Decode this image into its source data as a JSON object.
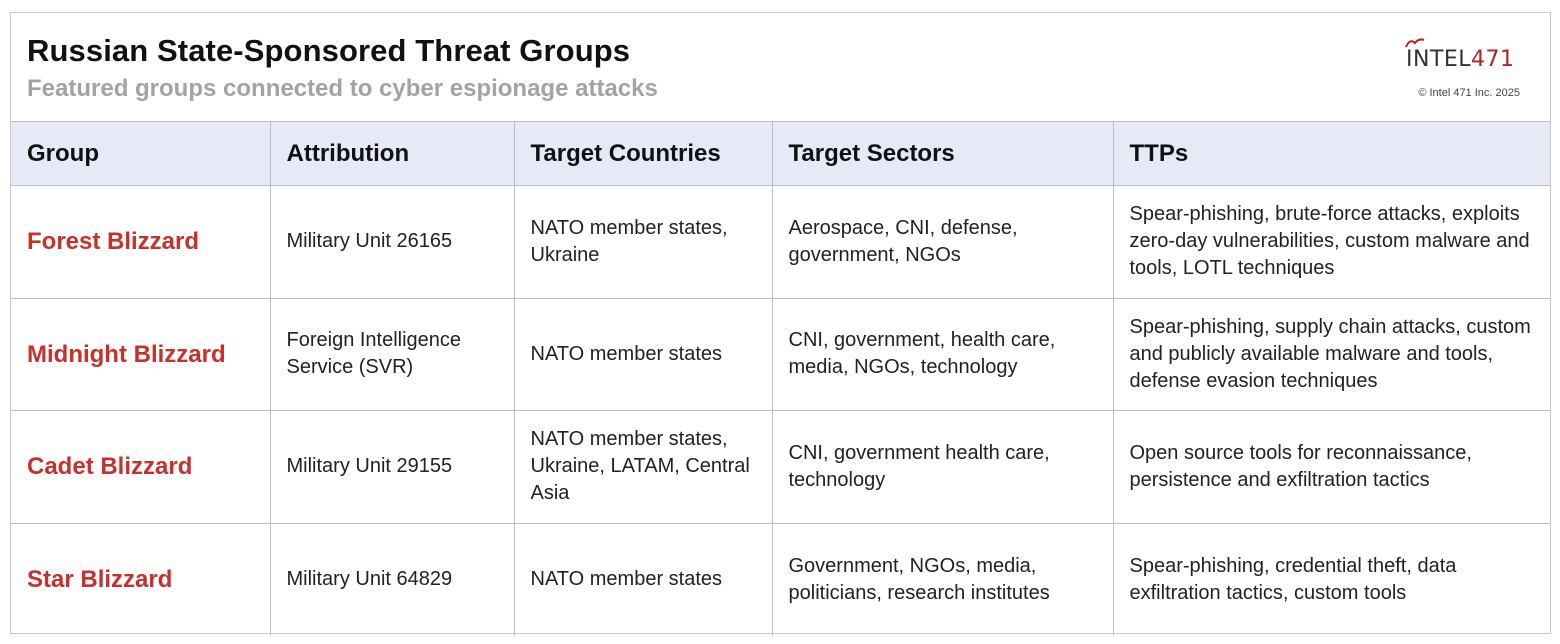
{
  "header": {
    "title": "Russian State-Sponsored Threat Groups",
    "subtitle": "Featured groups connected to cyber espionage attacks"
  },
  "logo": {
    "name_left": "INTEL",
    "name_right": "471",
    "copyright": "© Intel 471 Inc. 2025",
    "accent_color": "#b22222"
  },
  "table": {
    "headers": [
      "Group",
      "Attribution",
      "Target Countries",
      "Target Sectors",
      "TTPs"
    ],
    "rows": [
      {
        "group": "Forest Blizzard",
        "attribution": "Military Unit 26165",
        "countries": "NATO member states, Ukraine",
        "sectors": "Aerospace, CNI, defense, government, NGOs",
        "ttps": "Spear-phishing, brute-force attacks, exploits zero-day vulnerabilities, custom malware and tools, LOTL techniques"
      },
      {
        "group": "Midnight Blizzard",
        "attribution": "Foreign Intelligence Service (SVR)",
        "countries": "NATO member states",
        "sectors": "CNI, government, health care, media, NGOs, technology",
        "ttps": "Spear-phishing, supply chain attacks, custom and publicly available malware and tools, defense evasion techniques"
      },
      {
        "group": "Cadet Blizzard",
        "attribution": "Military Unit 29155",
        "countries": "NATO member states, Ukraine, LATAM, Central Asia",
        "sectors": "CNI, government health care, technology",
        "ttps": "Open source tools for reconnaissance, persistence and exfiltration tactics"
      },
      {
        "group": "Star Blizzard",
        "attribution": "Military Unit 64829",
        "countries": "NATO member states",
        "sectors": "Government, NGOs, media, politicians, research institutes",
        "ttps": "Spear-phishing, credential theft, data exfiltration tactics, custom tools"
      }
    ]
  },
  "colors": {
    "group_name": "#c8302b",
    "header_bg": "#e6e9f6",
    "subtitle": "#a3a3a3"
  }
}
